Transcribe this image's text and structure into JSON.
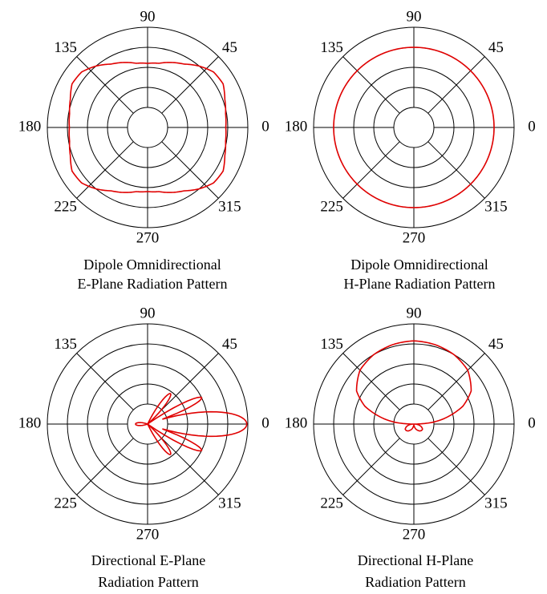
{
  "colors": {
    "trace": "#e00000",
    "grid": "#000000"
  },
  "chart_data": [
    {
      "type": "polar",
      "title_lines": [
        "Dipole Omnidirectional",
        "E-Plane Radiation Pattern"
      ],
      "angle_labels": [
        "0",
        "45",
        "90",
        "135",
        "180",
        "225",
        "270",
        "315"
      ],
      "rings": 5,
      "rlim": [
        0,
        1
      ],
      "grid": true,
      "series": [
        {
          "theta_deg": [
            0,
            10,
            20,
            30,
            40,
            50,
            60,
            70,
            80,
            90,
            100,
            110,
            120,
            130,
            140,
            150,
            160,
            170,
            180,
            190,
            200,
            210,
            220,
            230,
            240,
            250,
            260,
            270,
            280,
            290,
            300,
            310,
            320,
            330,
            340,
            350
          ],
          "r": [
            0.78,
            0.79,
            0.82,
            0.87,
            0.86,
            0.8,
            0.73,
            0.69,
            0.65,
            0.64,
            0.65,
            0.69,
            0.73,
            0.8,
            0.86,
            0.87,
            0.82,
            0.79,
            0.78,
            0.79,
            0.82,
            0.87,
            0.86,
            0.8,
            0.73,
            0.69,
            0.65,
            0.64,
            0.65,
            0.69,
            0.73,
            0.8,
            0.86,
            0.87,
            0.82,
            0.79
          ]
        }
      ]
    },
    {
      "type": "polar",
      "title_lines": [
        "Dipole Omnidirectional",
        "H-Plane Radiation Pattern"
      ],
      "angle_labels": [
        "0",
        "45",
        "90",
        "135",
        "180",
        "225",
        "270",
        "315"
      ],
      "rings": 5,
      "rlim": [
        0,
        1
      ],
      "grid": true,
      "series": [
        {
          "theta_deg": [
            0,
            30,
            60,
            90,
            120,
            150,
            180,
            210,
            240,
            270,
            300,
            330
          ],
          "r": [
            0.8,
            0.8,
            0.8,
            0.8,
            0.8,
            0.8,
            0.8,
            0.8,
            0.8,
            0.8,
            0.8,
            0.8
          ]
        }
      ]
    },
    {
      "type": "polar",
      "title_lines": [
        "Directional E-Plane",
        "Radiation Pattern"
      ],
      "angle_labels": [
        "0",
        "45",
        "90",
        "135",
        "180",
        "225",
        "270",
        "315"
      ],
      "rings": 5,
      "rlim": [
        0,
        1
      ],
      "grid": true,
      "series": [
        {
          "lobes": [
            {
              "center_deg": 0,
              "halfwidth_deg": 20,
              "peak_r": 0.99
            },
            {
              "center_deg": 26,
              "halfwidth_deg": 9,
              "peak_r": 0.6
            },
            {
              "center_deg": -26,
              "halfwidth_deg": 9,
              "peak_r": 0.6
            },
            {
              "center_deg": 53,
              "halfwidth_deg": 11,
              "peak_r": 0.38
            },
            {
              "center_deg": -53,
              "halfwidth_deg": 11,
              "peak_r": 0.38
            },
            {
              "center_deg": 180,
              "halfwidth_deg": 20,
              "peak_r": 0.12
            }
          ]
        }
      ]
    },
    {
      "type": "polar",
      "title_lines": [
        "Directional H-Plane",
        "Radiation Pattern"
      ],
      "angle_labels": [
        "0",
        "45",
        "90",
        "135",
        "180",
        "225",
        "270",
        "315"
      ],
      "rings": 5,
      "rlim": [
        0,
        1
      ],
      "grid": true,
      "series": [
        {
          "theta_deg": [
            0,
            5,
            10,
            20,
            30,
            45,
            60,
            75,
            90,
            105,
            120,
            135,
            150,
            160,
            170,
            175,
            180,
            185,
            190,
            200,
            210,
            220,
            230,
            240,
            250,
            260,
            270,
            280,
            290,
            300,
            310,
            320,
            330,
            340,
            350,
            355
          ],
          "r": [
            0.0,
            0.18,
            0.3,
            0.52,
            0.66,
            0.76,
            0.8,
            0.82,
            0.83,
            0.82,
            0.8,
            0.76,
            0.66,
            0.52,
            0.3,
            0.18,
            0.0,
            0.03,
            0.05,
            0.08,
            0.1,
            0.1,
            0.09,
            0.07,
            0.05,
            0.02,
            0.0,
            0.02,
            0.05,
            0.07,
            0.09,
            0.1,
            0.1,
            0.08,
            0.05,
            0.03
          ]
        }
      ]
    }
  ]
}
